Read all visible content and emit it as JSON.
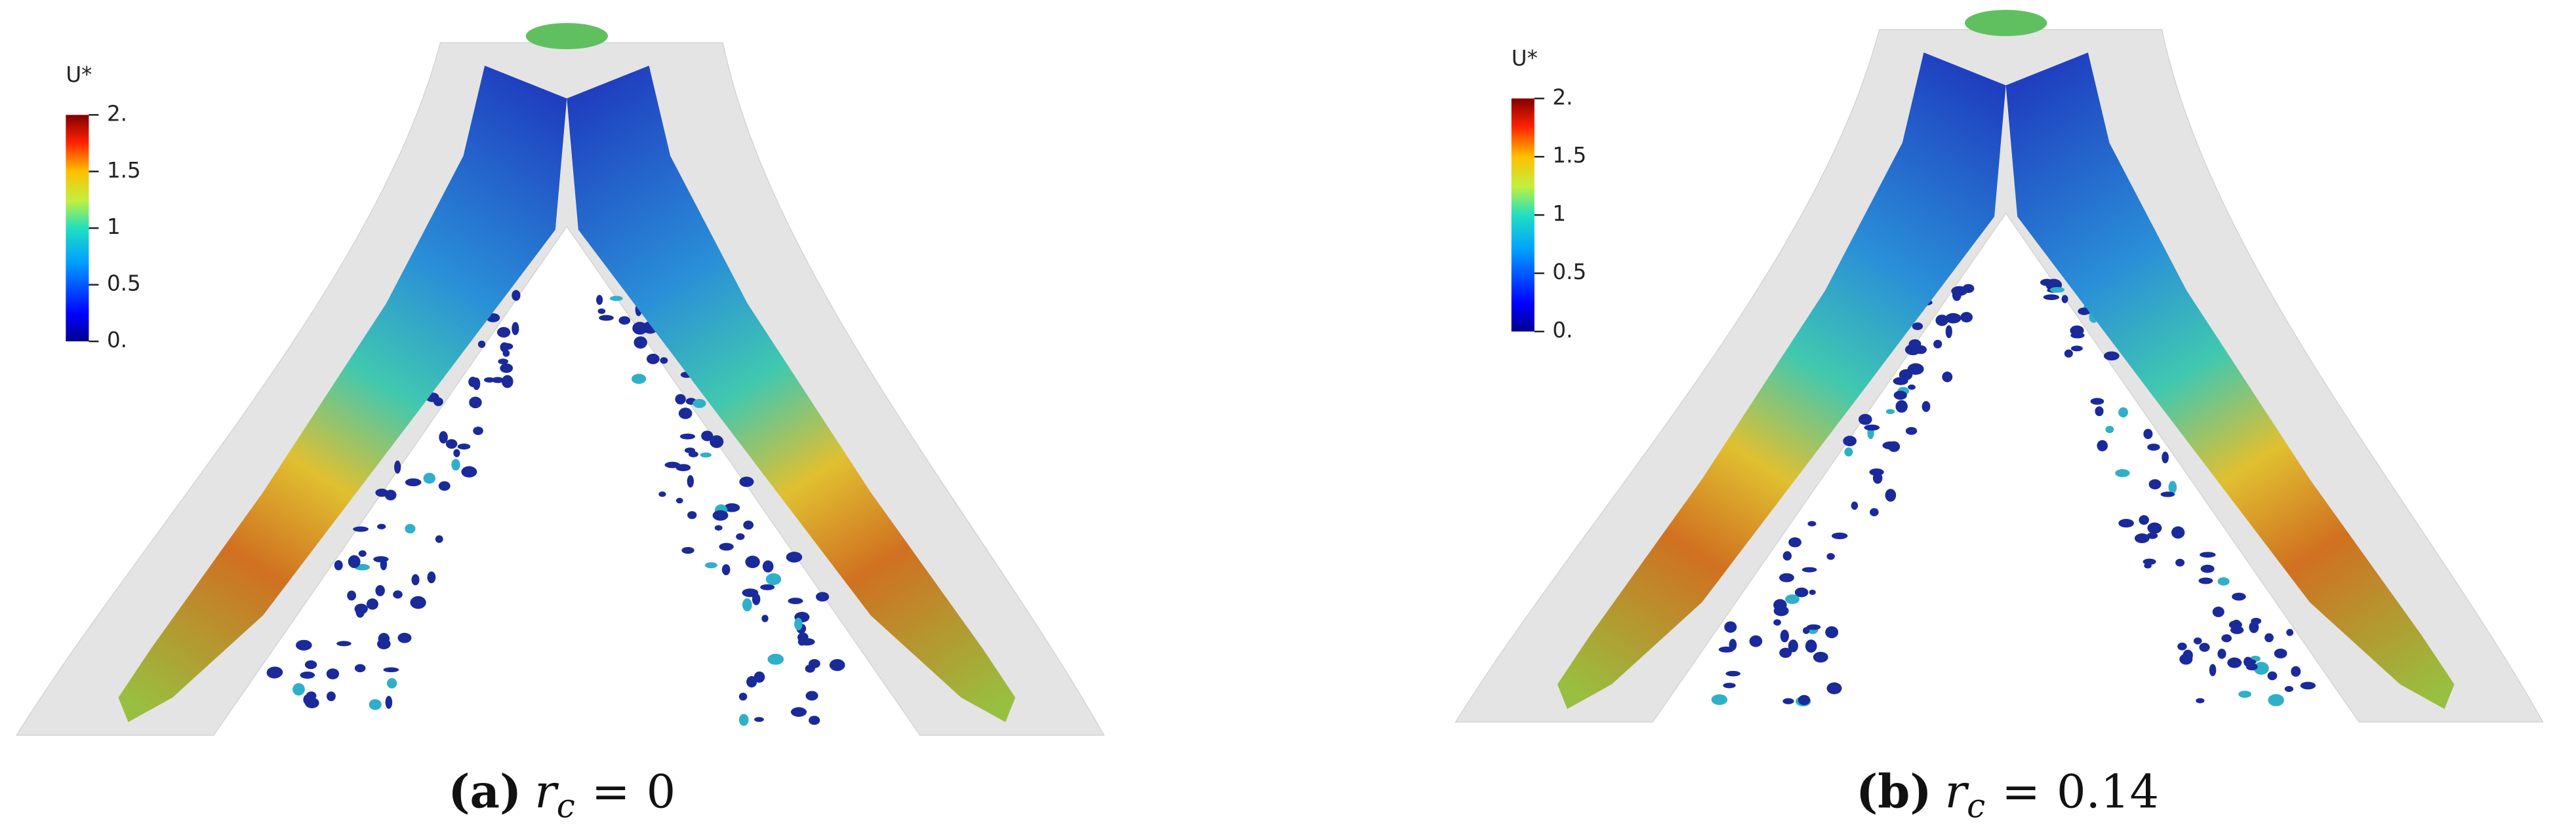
{
  "panels": [
    {
      "colorbar": {
        "title": "U*",
        "lim": [
          0,
          2
        ],
        "ticks": [
          {
            "value": 2,
            "label": "2."
          },
          1.5,
          1,
          0.5,
          {
            "value": 0,
            "label": "0."
          }
        ]
      },
      "caption": {
        "label": "(a)",
        "variable": "r",
        "subscript": "c",
        "relation": "=",
        "value": 0
      }
    },
    {
      "colorbar": {
        "title": "U*",
        "lim": [
          0,
          2
        ],
        "ticks": [
          {
            "value": 2,
            "label": "2."
          },
          1.5,
          1,
          0.5,
          {
            "value": 0,
            "label": "0."
          }
        ]
      },
      "caption": {
        "label": "(b)",
        "variable": "r",
        "subscript": "c",
        "relation": "=",
        "value": 0.14
      }
    }
  ]
}
